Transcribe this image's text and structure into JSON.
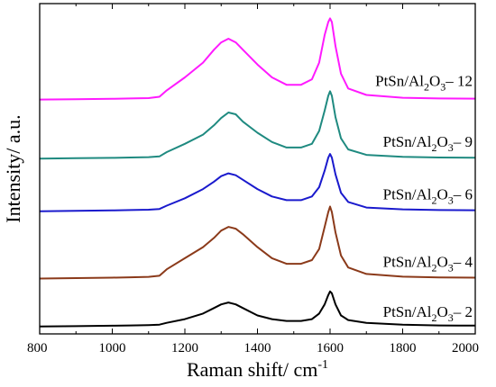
{
  "chart_data": {
    "type": "line",
    "title": "",
    "xlabel": {
      "main": "Raman shift/ cm",
      "sup": "-1"
    },
    "ylabel": "Intensity/ a.u.",
    "xlim": [
      800,
      2000
    ],
    "xticks": [
      800,
      1000,
      1200,
      1400,
      1600,
      1800,
      2000
    ],
    "y_ticks_labeled": false,
    "grid": false,
    "legend": "inline labels at right of each curve",
    "x": [
      800,
      900,
      1000,
      1050,
      1100,
      1130,
      1150,
      1200,
      1250,
      1280,
      1300,
      1320,
      1340,
      1360,
      1400,
      1440,
      1480,
      1520,
      1550,
      1570,
      1585,
      1595,
      1600,
      1605,
      1615,
      1630,
      1650,
      1700,
      1800,
      1900,
      2000
    ],
    "series": [
      {
        "label": {
          "pre": "PtSn/Al",
          "sub1": "2",
          "mid": "O",
          "sub2": "3",
          "post": "– 2"
        },
        "color": "#000000",
        "offset": 0,
        "values": [
          0,
          0.4,
          0.9,
          1.2,
          1.6,
          2.0,
          4.0,
          8.0,
          14.0,
          20.0,
          24.0,
          26.0,
          24.0,
          20.0,
          12.0,
          8.0,
          6.0,
          6.0,
          8.0,
          14.0,
          24.0,
          34.0,
          38.0,
          36.0,
          24.0,
          12.0,
          7.0,
          4.0,
          2.0,
          1.2,
          1.0
        ]
      },
      {
        "label": {
          "pre": "PtSn/Al",
          "sub1": "2",
          "mid": "O",
          "sub2": "3",
          "post": "– 4"
        },
        "color": "#8b3a1a",
        "offset": 52,
        "values": [
          0,
          0.5,
          1.0,
          1.4,
          1.8,
          3.0,
          10.0,
          22.0,
          34.0,
          44.0,
          52.0,
          56.0,
          54.0,
          48.0,
          34.0,
          22.0,
          16.0,
          16.0,
          20.0,
          32.0,
          56.0,
          72.0,
          78.0,
          72.0,
          50.0,
          25.0,
          12.0,
          5.0,
          2.0,
          1.2,
          1.0
        ]
      },
      {
        "label": {
          "pre": "PtSn/Al",
          "sub1": "2",
          "mid": "O",
          "sub2": "3",
          "post": "– 6"
        },
        "color": "#1a1acd",
        "offset": 125,
        "values": [
          0,
          0.4,
          0.8,
          1.2,
          1.6,
          2.4,
          6.0,
          14.0,
          24.0,
          32.0,
          38.0,
          41.0,
          39.0,
          34.0,
          24.0,
          16.0,
          12.0,
          12.0,
          16.0,
          26.0,
          44.0,
          58.0,
          62.0,
          58.0,
          40.0,
          20.0,
          10.0,
          4.0,
          2.0,
          1.2,
          1.0
        ]
      },
      {
        "label": {
          "pre": "PtSn/Al",
          "sub1": "2",
          "mid": "O",
          "sub2": "3",
          "post": "– 9"
        },
        "color": "#1f8a80",
        "offset": 182,
        "values": [
          0,
          0.4,
          0.8,
          1.2,
          1.6,
          2.4,
          7.0,
          16.0,
          26.0,
          36.0,
          44.0,
          50.0,
          48.0,
          40.0,
          28.0,
          18.0,
          12.0,
          12.0,
          16.0,
          30.0,
          52.0,
          68.0,
          73.0,
          68.0,
          45.0,
          22.0,
          10.0,
          4.0,
          2.0,
          1.2,
          1.0
        ]
      },
      {
        "label": {
          "pre": "PtSn/Al",
          "sub1": "2",
          "mid": "O",
          "sub2": "3",
          "post": "– 12"
        },
        "color": "#ff1aff",
        "offset": 246,
        "values": [
          0,
          0.4,
          0.8,
          1.2,
          1.6,
          3.0,
          10.0,
          24.0,
          40.0,
          54.0,
          62.0,
          66.0,
          62.0,
          54.0,
          38.0,
          24.0,
          16.0,
          16.0,
          22.0,
          40.0,
          70.0,
          84.0,
          88.0,
          84.0,
          58.0,
          28.0,
          12.0,
          5.0,
          2.0,
          1.2,
          1.0
        ]
      }
    ],
    "ylim": [
      -8,
      350
    ]
  }
}
